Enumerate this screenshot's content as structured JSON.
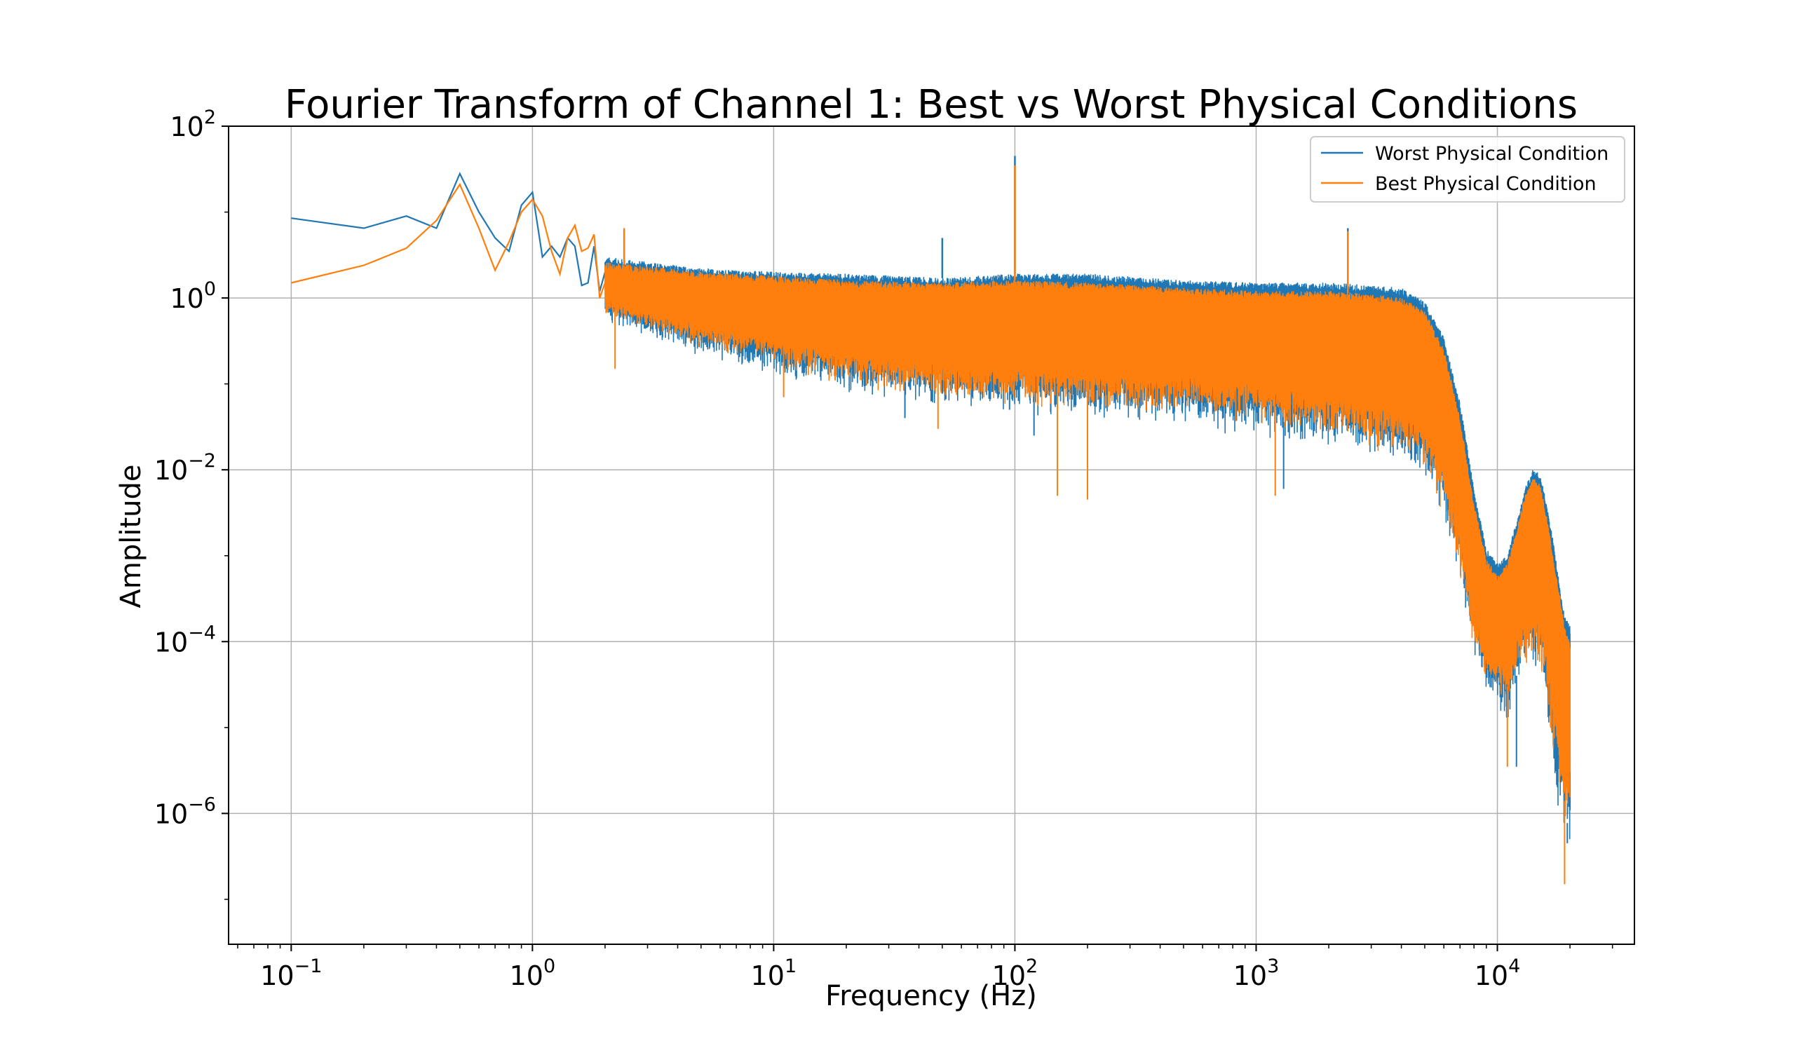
{
  "chart_data": {
    "type": "line",
    "title": "Fourier Transform of Channel 1: Best vs Worst Physical Conditions",
    "xlabel": "Frequency (Hz)",
    "ylabel": "Amplitude",
    "x_scale": "log",
    "y_scale": "log",
    "xlim": [
      0.055,
      37000
    ],
    "ylim": [
      3e-08,
      100
    ],
    "grid": true,
    "legend_position": "top-right",
    "x_ticks": [
      {
        "value": 0.1,
        "base": "10",
        "exp": "−1"
      },
      {
        "value": 1,
        "base": "10",
        "exp": "0"
      },
      {
        "value": 10,
        "base": "10",
        "exp": "1"
      },
      {
        "value": 100,
        "base": "10",
        "exp": "2"
      },
      {
        "value": 1000,
        "base": "10",
        "exp": "3"
      },
      {
        "value": 10000,
        "base": "10",
        "exp": "4"
      }
    ],
    "y_ticks": [
      {
        "value": 100,
        "base": "10",
        "exp": "2"
      },
      {
        "value": 1,
        "base": "10",
        "exp": "0"
      },
      {
        "value": 0.01,
        "base": "10",
        "exp": "−2"
      },
      {
        "value": 0.0001,
        "base": "10",
        "exp": "−4"
      },
      {
        "value": 1e-06,
        "base": "10",
        "exp": "−6"
      }
    ],
    "series": [
      {
        "name": "Worst Physical Condition",
        "color": "#1f77b4",
        "envelope": {
          "x": [
            2,
            5,
            10,
            20,
            50,
            100,
            200,
            500,
            1000,
            2000,
            3000,
            4000,
            5000,
            6000,
            7000,
            8000,
            9000,
            10000,
            11000,
            12000,
            13000,
            14000,
            15000,
            16000,
            17000,
            18000,
            19000,
            20000
          ],
          "upper": [
            3.0,
            2.2,
            2.0,
            1.9,
            1.7,
            1.9,
            1.9,
            1.6,
            1.5,
            1.5,
            1.4,
            1.3,
            0.9,
            0.35,
            0.06,
            0.006,
            0.0012,
            0.0008,
            0.001,
            0.0025,
            0.006,
            0.01,
            0.009,
            0.004,
            0.0015,
            0.0005,
            0.0002,
            0.00015
          ],
          "lower": [
            0.5,
            0.2,
            0.12,
            0.07,
            0.05,
            0.04,
            0.035,
            0.03,
            0.02,
            0.015,
            0.012,
            0.01,
            0.006,
            0.002,
            0.0003,
            5e-05,
            2e-05,
            1.5e-05,
            1e-05,
            2e-05,
            3e-05,
            4e-05,
            3e-05,
            1e-05,
            2e-06,
            1e-06,
            5e-07,
            3e-07
          ]
        },
        "low_freq": {
          "x": [
            0.1,
            0.2,
            0.3,
            0.4,
            0.5,
            0.6,
            0.7,
            0.8,
            0.9,
            1.0,
            1.1,
            1.2,
            1.3,
            1.4,
            1.5,
            1.6,
            1.7,
            1.8,
            1.9,
            2.0
          ],
          "y": [
            8.5,
            6.5,
            9.0,
            6.5,
            28.0,
            10.0,
            5.0,
            3.5,
            12.0,
            17.0,
            3.0,
            4.0,
            3.0,
            5.0,
            4.0,
            1.4,
            1.5,
            4.0,
            1.2,
            2.0
          ]
        },
        "spikes": [
          {
            "x": 50,
            "y": 5.0
          },
          {
            "x": 100,
            "y": 45.0
          },
          {
            "x": 2400,
            "y": 6.5
          }
        ],
        "dips": [
          {
            "x": 35,
            "y": 0.04
          },
          {
            "x": 95,
            "y": 0.05
          },
          {
            "x": 120,
            "y": 0.025
          },
          {
            "x": 1300,
            "y": 0.006
          },
          {
            "x": 12000,
            "y": 3.5e-06
          },
          {
            "x": 19500,
            "y": 4.5e-07
          }
        ]
      },
      {
        "name": "Best Physical Condition",
        "color": "#ff7f0e",
        "envelope": {
          "x": [
            2,
            5,
            10,
            20,
            50,
            100,
            200,
            500,
            1000,
            2000,
            3000,
            4000,
            5000,
            6000,
            7000,
            8000,
            9000,
            10000,
            11000,
            12000,
            13000,
            14000,
            15000,
            16000,
            17000,
            18000,
            19000,
            20000
          ],
          "upper": [
            2.6,
            2.0,
            1.8,
            1.6,
            1.5,
            1.6,
            1.5,
            1.3,
            1.2,
            1.2,
            1.1,
            1.0,
            0.7,
            0.25,
            0.04,
            0.004,
            0.0009,
            0.0006,
            0.0008,
            0.002,
            0.005,
            0.008,
            0.007,
            0.003,
            0.001,
            0.0004,
            0.00015,
            0.0001
          ],
          "lower": [
            0.6,
            0.25,
            0.15,
            0.09,
            0.06,
            0.05,
            0.045,
            0.04,
            0.03,
            0.02,
            0.015,
            0.012,
            0.008,
            0.003,
            0.0004,
            7e-05,
            3e-05,
            2e-05,
            1.5e-05,
            3e-05,
            4e-05,
            5e-05,
            4e-05,
            1.5e-05,
            3e-06,
            1.5e-06,
            7e-07,
            5e-07
          ]
        },
        "low_freq": {
          "x": [
            0.1,
            0.2,
            0.3,
            0.4,
            0.5,
            0.6,
            0.7,
            0.8,
            0.9,
            1.0,
            1.1,
            1.2,
            1.3,
            1.4,
            1.5,
            1.6,
            1.7,
            1.8,
            1.9,
            2.0
          ],
          "y": [
            1.5,
            2.4,
            3.8,
            8.0,
            21.0,
            6.5,
            2.1,
            4.5,
            10.0,
            14.0,
            9.0,
            3.5,
            1.9,
            5.0,
            7.0,
            3.5,
            3.8,
            5.5,
            1.0,
            1.5
          ]
        },
        "spikes": [
          {
            "x": 2.4,
            "y": 6.5
          },
          {
            "x": 100,
            "y": 35.0
          },
          {
            "x": 2400,
            "y": 6.0
          }
        ],
        "dips": [
          {
            "x": 2.2,
            "y": 0.15
          },
          {
            "x": 11,
            "y": 0.07
          },
          {
            "x": 48,
            "y": 0.03
          },
          {
            "x": 150,
            "y": 0.005
          },
          {
            "x": 200,
            "y": 0.0045
          },
          {
            "x": 1200,
            "y": 0.005
          },
          {
            "x": 11000,
            "y": 3.5e-06
          },
          {
            "x": 19000,
            "y": 1.5e-07
          }
        ]
      }
    ]
  }
}
